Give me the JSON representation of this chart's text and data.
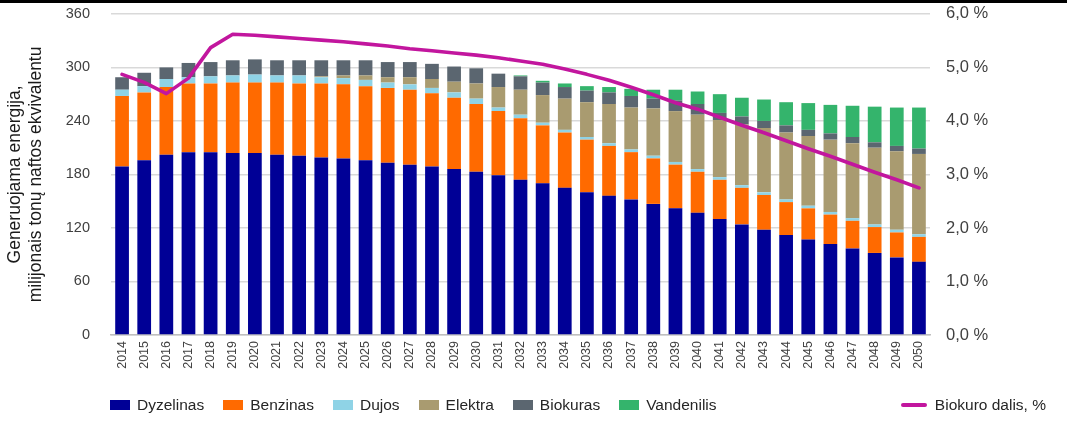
{
  "chart_data": {
    "type": "bar",
    "stacked": true,
    "categories": [
      "2014",
      "2015",
      "2016",
      "2017",
      "2018",
      "2019",
      "2020",
      "2021",
      "2022",
      "2023",
      "2024",
      "2025",
      "2026",
      "2027",
      "2028",
      "2029",
      "2030",
      "2031",
      "2032",
      "2033",
      "2034",
      "2035",
      "2036",
      "2037",
      "2038",
      "2039",
      "2040",
      "2041",
      "2042",
      "2043",
      "2044",
      "2045",
      "2046",
      "2047",
      "2048",
      "2049",
      "2050"
    ],
    "ylabel": "Generuojama energija,\nmilijonais tonų naftos ekvivalentu",
    "ylim": [
      0,
      360
    ],
    "yticks": [
      0,
      60,
      120,
      180,
      240,
      300,
      360
    ],
    "y2lim": [
      0,
      6
    ],
    "y2ticks": [
      {
        "value": 0,
        "label": "0,0 %"
      },
      {
        "value": 1,
        "label": "1,0 %"
      },
      {
        "value": 2,
        "label": "2,0 %"
      },
      {
        "value": 3,
        "label": "3,0 %"
      },
      {
        "value": 4,
        "label": "4,0 %"
      },
      {
        "value": 5,
        "label": "5,0 %"
      },
      {
        "value": 6,
        "label": "6,0 %"
      }
    ],
    "series": [
      {
        "name": "Dyzelinas",
        "color": "#000096",
        "values": [
          189,
          196,
          202,
          205,
          205,
          204,
          204,
          202,
          201,
          199,
          198,
          196,
          193,
          191,
          189,
          186,
          183,
          179,
          174,
          170,
          165,
          160,
          156,
          152,
          147,
          142,
          137,
          130,
          124,
          118,
          112,
          107,
          102,
          97,
          92,
          87,
          82
        ]
      },
      {
        "name": "Benzinas",
        "color": "#ff6a00",
        "values": [
          79,
          76,
          76,
          77,
          77,
          79,
          79,
          81,
          81,
          83,
          83,
          83,
          84,
          84,
          82,
          80,
          76,
          72,
          69,
          65,
          62,
          59,
          56,
          53,
          51,
          49,
          46,
          44,
          41,
          39,
          37,
          35,
          33,
          31,
          29,
          28,
          28
        ]
      },
      {
        "name": "Dujos",
        "color": "#8fd3e6",
        "values": [
          7,
          7,
          9,
          7,
          8,
          8,
          9,
          8,
          9,
          7,
          7,
          7,
          6,
          6,
          6,
          6,
          6,
          4,
          4,
          3,
          3,
          3,
          3,
          3,
          3,
          3,
          3,
          3,
          3,
          3,
          3,
          3,
          3,
          3,
          3,
          3,
          3
        ]
      },
      {
        "name": "Elektra",
        "color": "#a99b70",
        "values": [
          0,
          0,
          0,
          0,
          0,
          0,
          0,
          0,
          0,
          1,
          3,
          5,
          6,
          8,
          10,
          12,
          17,
          23,
          28,
          31,
          35,
          39,
          44,
          47,
          53,
          57,
          61,
          64,
          68,
          72,
          75,
          78,
          81,
          84,
          86,
          88,
          90
        ]
      },
      {
        "name": "Biokuras",
        "color": "#5b6670",
        "values": [
          14,
          15,
          13,
          16,
          16,
          17,
          17,
          17,
          17,
          18,
          17,
          17,
          17,
          17,
          17,
          17,
          17,
          15,
          15,
          14,
          13,
          13,
          13,
          13,
          11,
          12,
          12,
          8,
          9,
          8,
          8,
          7,
          7,
          7,
          6,
          6,
          6
        ]
      },
      {
        "name": "Vandenilis",
        "color": "#34b46c",
        "values": [
          0,
          0,
          0,
          0,
          0,
          0,
          0,
          0,
          0,
          0,
          0,
          0,
          0,
          0,
          0,
          0,
          0,
          0,
          1,
          2,
          4,
          5,
          6,
          8,
          10,
          12,
          14,
          21,
          21,
          24,
          26,
          30,
          32,
          35,
          40,
          43,
          46
        ]
      },
      {
        "name": "Biokuro dalis, %",
        "type": "line",
        "axis": "y2",
        "color": "#c2169e",
        "values": [
          4.87,
          4.72,
          4.51,
          4.8,
          5.37,
          5.62,
          5.6,
          5.57,
          5.54,
          5.51,
          5.48,
          5.44,
          5.4,
          5.35,
          5.31,
          5.27,
          5.23,
          5.18,
          5.12,
          5.06,
          4.97,
          4.87,
          4.76,
          4.63,
          4.49,
          4.34,
          4.22,
          4.07,
          3.92,
          3.78,
          3.63,
          3.48,
          3.34,
          3.19,
          3.04,
          2.9,
          2.75
        ]
      }
    ],
    "grid": "y",
    "legend": "bottom",
    "marker": "none",
    "line_style": "solid"
  }
}
